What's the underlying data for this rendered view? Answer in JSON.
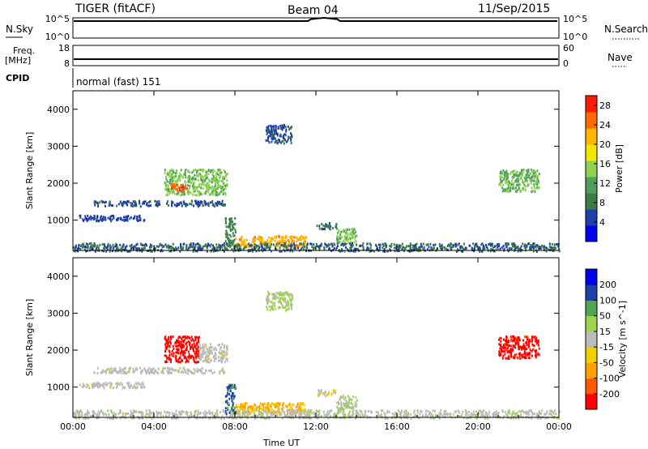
{
  "header": {
    "radar": "TIGER (fitACF)",
    "beam": "Beam 04",
    "date": "11/Sep/2015"
  },
  "nsky": {
    "label": "N.Sky",
    "right_label": "N.Search",
    "left_ticks": [
      "10^5",
      "10^0"
    ],
    "right_ticks": [
      "10^5",
      "10^0"
    ]
  },
  "freq": {
    "label_line1": "Freq.",
    "label_line2": "[MHz]",
    "left_ticks": [
      "18",
      "8"
    ],
    "right_label": "Nave",
    "right_ticks": [
      "60",
      "0"
    ]
  },
  "cpid": {
    "label": "CPID",
    "text": "normal (fast) 151"
  },
  "colors": {
    "power_scale": [
      "#0000ee",
      "#1f3fa8",
      "#3c7a4a",
      "#4f9f5f",
      "#8fd24f",
      "#f2e700",
      "#ffb400",
      "#ff6a00",
      "#ff1a00"
    ],
    "velocity_scale": [
      "#ff0000",
      "#ff5a00",
      "#ffa000",
      "#f0d000",
      "#bbbbbb",
      "#9fd24f",
      "#4fa64f",
      "#1f3fa8",
      "#0000ee"
    ],
    "axis": "#000000"
  },
  "chart_data": [
    {
      "type": "heatmap",
      "title": "",
      "xlabel": "",
      "ylabel": "Slant Range [km]",
      "x_range_hours": [
        0,
        24
      ],
      "x_ticks": [
        "00:00",
        "04:00",
        "08:00",
        "12:00",
        "16:00",
        "20:00",
        "00:00"
      ],
      "ylim": [
        180,
        4500
      ],
      "y_ticks": [
        1000,
        2000,
        3000,
        4000
      ],
      "colorbar": {
        "label": "Power [dB]",
        "ticks": [
          4,
          8,
          12,
          16,
          20,
          24,
          28
        ],
        "range": [
          0,
          30
        ]
      },
      "echo_regions": [
        {
          "t0": 1.0,
          "t1": 7.5,
          "r0": 1400,
          "r1": 1550,
          "value": 6
        },
        {
          "t0": 0.3,
          "t1": 3.5,
          "r0": 1000,
          "r1": 1150,
          "value": 5
        },
        {
          "t0": 4.5,
          "t1": 7.6,
          "r0": 1700,
          "r1": 2400,
          "value": 14
        },
        {
          "t0": 4.8,
          "t1": 5.6,
          "r0": 1800,
          "r1": 2000,
          "value": 26
        },
        {
          "t0": 8.0,
          "t1": 11.5,
          "r0": 300,
          "r1": 600,
          "value": 22
        },
        {
          "t0": 12.0,
          "t1": 13.0,
          "r0": 780,
          "r1": 950,
          "value": 8
        },
        {
          "t0": 13.0,
          "t1": 14.0,
          "r0": 400,
          "r1": 800,
          "value": 14
        },
        {
          "t0": 21.0,
          "t1": 23.0,
          "r0": 1800,
          "r1": 2400,
          "value": 13
        },
        {
          "t0": 0.0,
          "t1": 24.0,
          "r0": 180,
          "r1": 400,
          "value": 7
        },
        {
          "t0": 9.5,
          "t1": 10.8,
          "r0": 3100,
          "r1": 3600,
          "value": 6
        },
        {
          "t0": 7.5,
          "t1": 8.0,
          "r0": 300,
          "r1": 1100,
          "value": 9
        }
      ]
    },
    {
      "type": "heatmap",
      "title": "",
      "xlabel": "Time UT",
      "ylabel": "Slant Range [km]",
      "x_range_hours": [
        0,
        24
      ],
      "x_ticks": [
        "00:00",
        "04:00",
        "08:00",
        "12:00",
        "16:00",
        "20:00",
        "00:00"
      ],
      "ylim": [
        180,
        4500
      ],
      "y_ticks": [
        1000,
        2000,
        3000,
        4000
      ],
      "colorbar": {
        "label": "Velocity [m s^-1]",
        "ticks": [
          200,
          100,
          50,
          15,
          -15,
          -50,
          -100,
          -200
        ],
        "range": [
          -250,
          250
        ]
      },
      "echo_regions": [
        {
          "t0": 1.0,
          "t1": 7.5,
          "r0": 1400,
          "r1": 1550,
          "value": 0
        },
        {
          "t0": 0.3,
          "t1": 3.5,
          "r0": 1000,
          "r1": 1150,
          "value": 0
        },
        {
          "t0": 4.5,
          "t1": 6.2,
          "r0": 1700,
          "r1": 2400,
          "value": -220
        },
        {
          "t0": 6.2,
          "t1": 7.6,
          "r0": 1700,
          "r1": 2200,
          "value": 0
        },
        {
          "t0": 8.0,
          "t1": 11.5,
          "r0": 300,
          "r1": 600,
          "value": -90
        },
        {
          "t0": 12.0,
          "t1": 13.0,
          "r0": 780,
          "r1": 950,
          "value": -20
        },
        {
          "t0": 13.0,
          "t1": 14.0,
          "r0": 400,
          "r1": 800,
          "value": 30
        },
        {
          "t0": 21.0,
          "t1": 23.0,
          "r0": 1800,
          "r1": 2400,
          "value": -220
        },
        {
          "t0": 0.0,
          "t1": 24.0,
          "r0": 180,
          "r1": 400,
          "value": 10
        },
        {
          "t0": 9.5,
          "t1": 10.8,
          "r0": 3100,
          "r1": 3600,
          "value": 40
        },
        {
          "t0": 7.5,
          "t1": 8.0,
          "r0": 300,
          "r1": 1100,
          "value": 150
        }
      ]
    }
  ]
}
